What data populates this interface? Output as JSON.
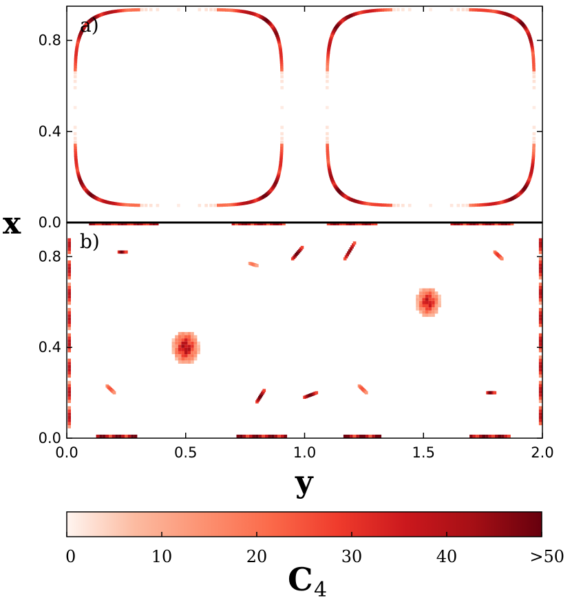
{
  "chart_data": [
    {
      "type": "heatmap",
      "panel_label": "a)",
      "xlabel": "y",
      "ylabel": "x",
      "xlim": [
        0.0,
        2.0
      ],
      "ylim": [
        0.0,
        0.95
      ],
      "xticks": [
        "0.0",
        "0.5",
        "1.0",
        "1.5",
        "2.0"
      ],
      "yticks": [
        "0.0",
        "0.4",
        "0.8"
      ],
      "contours": [
        {
          "center": [
            0.47,
            0.505
          ],
          "half_width": [
            0.435,
            0.43
          ],
          "squareness": 5
        },
        {
          "center": [
            1.53,
            0.505
          ],
          "half_width": [
            0.435,
            0.43
          ],
          "squareness": 5
        }
      ],
      "value_scale": [
        0,
        50
      ]
    },
    {
      "type": "heatmap",
      "panel_label": "b)",
      "xlabel": "y",
      "ylabel": "x",
      "xlim": [
        0.0,
        2.0
      ],
      "ylim": [
        0.0,
        0.95
      ],
      "xticks": [
        "0.0",
        "0.5",
        "1.0",
        "1.5",
        "2.0"
      ],
      "yticks": [
        "0.0",
        "0.4",
        "0.8"
      ],
      "blobs": [
        {
          "y": 0.5,
          "x": 0.4,
          "radius": 0.05,
          "peak": 50
        },
        {
          "y": 1.52,
          "x": 0.6,
          "radius": 0.045,
          "peak": 45
        }
      ],
      "streaks": [
        {
          "y0": 0.22,
          "x0": 0.82,
          "y1": 0.25,
          "x1": 0.82,
          "value": 50
        },
        {
          "y0": 0.95,
          "x0": 0.79,
          "y1": 0.99,
          "x1": 0.84,
          "value": 50
        },
        {
          "y0": 1.17,
          "x0": 0.79,
          "y1": 1.21,
          "x1": 0.86,
          "value": 45
        },
        {
          "y0": 1.8,
          "x0": 0.82,
          "y1": 1.83,
          "x1": 0.79,
          "value": 30
        },
        {
          "y0": 0.17,
          "x0": 0.23,
          "y1": 0.2,
          "x1": 0.2,
          "value": 25
        },
        {
          "y0": 0.8,
          "x0": 0.16,
          "y1": 0.83,
          "x1": 0.21,
          "value": 50
        },
        {
          "y0": 1.0,
          "x0": 0.18,
          "y1": 1.05,
          "x1": 0.2,
          "value": 50
        },
        {
          "y0": 1.23,
          "x0": 0.23,
          "y1": 1.26,
          "x1": 0.2,
          "value": 25
        },
        {
          "y0": 1.77,
          "x0": 0.2,
          "y1": 1.8,
          "x1": 0.2,
          "value": 50
        },
        {
          "y0": 0.77,
          "x0": 0.77,
          "y1": 0.8,
          "x1": 0.76,
          "value": 20
        }
      ],
      "edges": [
        {
          "side": "top",
          "y0": 0.1,
          "y1": 0.38,
          "value": 45
        },
        {
          "side": "top",
          "y0": 0.7,
          "y1": 0.92,
          "value": 45
        },
        {
          "side": "top",
          "y0": 1.1,
          "y1": 1.3,
          "value": 45
        },
        {
          "side": "top",
          "y0": 1.62,
          "y1": 1.88,
          "value": 45
        },
        {
          "side": "bottom",
          "y0": 0.13,
          "y1": 0.29,
          "value": 50
        },
        {
          "side": "bottom",
          "y0": 0.72,
          "y1": 0.92,
          "value": 50
        },
        {
          "side": "bottom",
          "y0": 1.17,
          "y1": 1.32,
          "value": 50
        },
        {
          "side": "bottom",
          "y0": 1.7,
          "y1": 1.86,
          "value": 50
        },
        {
          "side": "left",
          "x0": 0.05,
          "x1": 0.88,
          "value": 40
        },
        {
          "side": "right",
          "x0": 0.05,
          "x1": 0.88,
          "value": 40
        }
      ],
      "value_scale": [
        0,
        50
      ]
    }
  ],
  "colorbar": {
    "label": "C",
    "label_subscript": "4",
    "ticks": [
      "0",
      "10",
      "20",
      "30",
      "40",
      ">50"
    ],
    "range": [
      0,
      50
    ],
    "colormap": [
      "#fff5f0",
      "#fcbba1",
      "#fc9272",
      "#fb6a4a",
      "#ef3b2c",
      "#cb181d",
      "#a50f15",
      "#67000d"
    ]
  }
}
